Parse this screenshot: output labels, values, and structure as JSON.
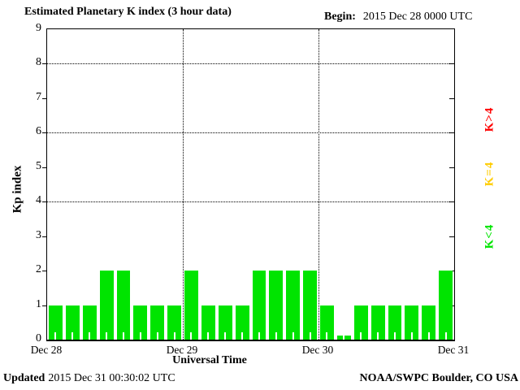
{
  "title": "Estimated Planetary K index (3 hour data)",
  "begin": {
    "label": "Begin:",
    "value": "2015 Dec 28 0000 UTC"
  },
  "axes": {
    "ylabel": "Kp index",
    "xlabel": "Universal Time",
    "yticks": [
      "0",
      "1",
      "2",
      "3",
      "4",
      "5",
      "6",
      "7",
      "8",
      "9"
    ],
    "xticks": [
      "Dec 28",
      "Dec 29",
      "Dec 30",
      "Dec 31"
    ]
  },
  "legend": [
    {
      "label": "K>4",
      "color": "#ff0000"
    },
    {
      "label": "K=4",
      "color": "#ffcc00"
    },
    {
      "label": "K<4",
      "color": "#00e400"
    }
  ],
  "footer": {
    "updated_label": "Updated",
    "updated_value": "2015 Dec 31 00:30:02 UTC",
    "credit": "NOAA/SWPC Boulder, CO USA"
  },
  "chart_data": {
    "type": "bar",
    "title": "Estimated Planetary K index (3 hour data)",
    "xlabel": "Universal Time",
    "ylabel": "Kp index",
    "ylim": [
      0,
      9
    ],
    "bar_color": "#00e400",
    "bars_per_day": 8,
    "days": [
      "Dec 28",
      "Dec 29",
      "Dec 30"
    ],
    "values_by_day": {
      "Dec 28": [
        1,
        1,
        1,
        2,
        2,
        1,
        1,
        1
      ],
      "Dec 29": [
        2,
        1,
        1,
        1,
        2,
        2,
        2,
        2
      ],
      "Dec 30": [
        1,
        0,
        1,
        1,
        1,
        1,
        1,
        2
      ]
    },
    "values": [
      1,
      1,
      1,
      2,
      2,
      1,
      1,
      1,
      2,
      1,
      1,
      1,
      2,
      2,
      2,
      2,
      1,
      0,
      1,
      1,
      1,
      1,
      1,
      2
    ],
    "dotted_hlines": [
      4,
      6,
      8
    ],
    "dotted_vlines_day_index": [
      1,
      2
    ],
    "axis_ticks_values": [
      1,
      2,
      3,
      4,
      5,
      6,
      7,
      8
    ],
    "legend_position": "right",
    "grid": "partial-dotted"
  }
}
